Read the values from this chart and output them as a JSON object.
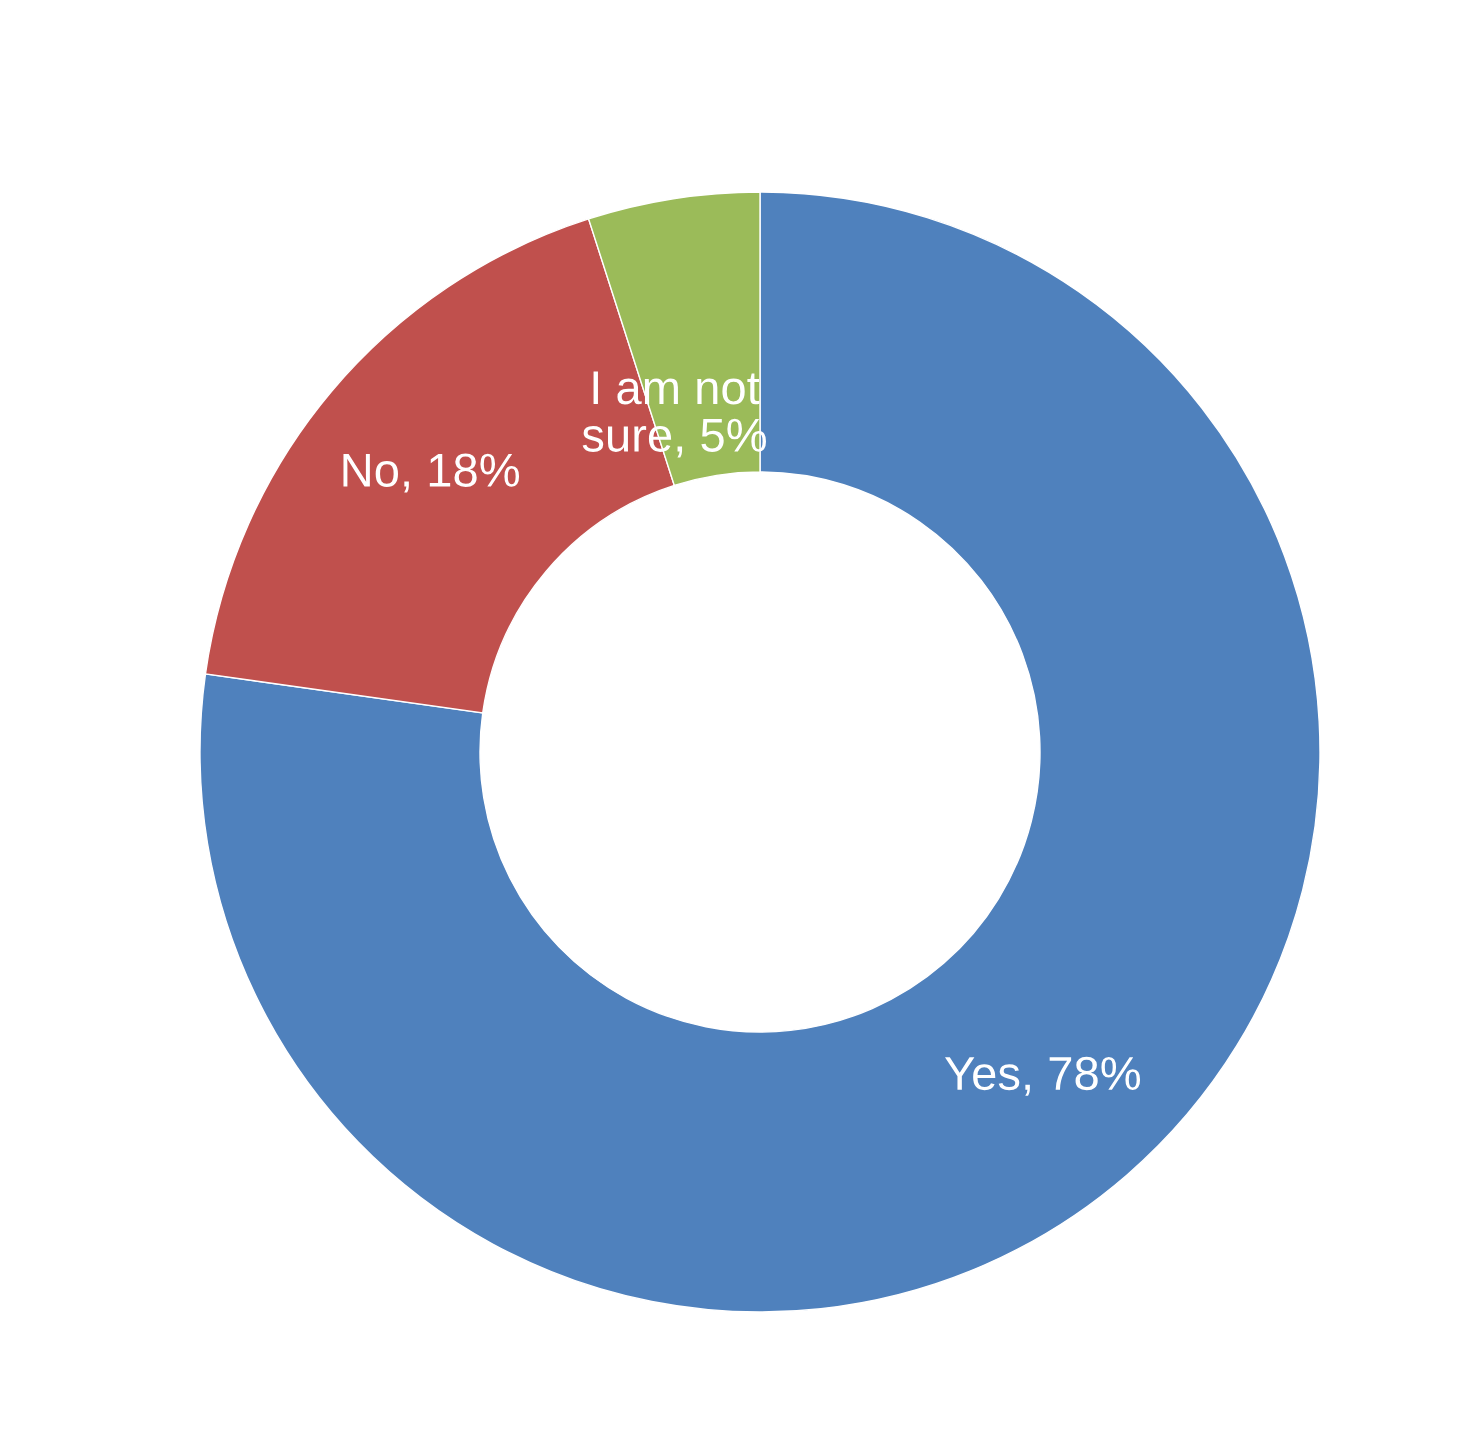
{
  "chart_data": {
    "type": "donut",
    "categories": [
      "Yes",
      "No",
      "I am not sure"
    ],
    "values": [
      78,
      18,
      5
    ],
    "colors": [
      "#4f81bd",
      "#c0504d",
      "#9bbb59"
    ],
    "value_labels": [
      "78%",
      "18%",
      "5%"
    ]
  }
}
